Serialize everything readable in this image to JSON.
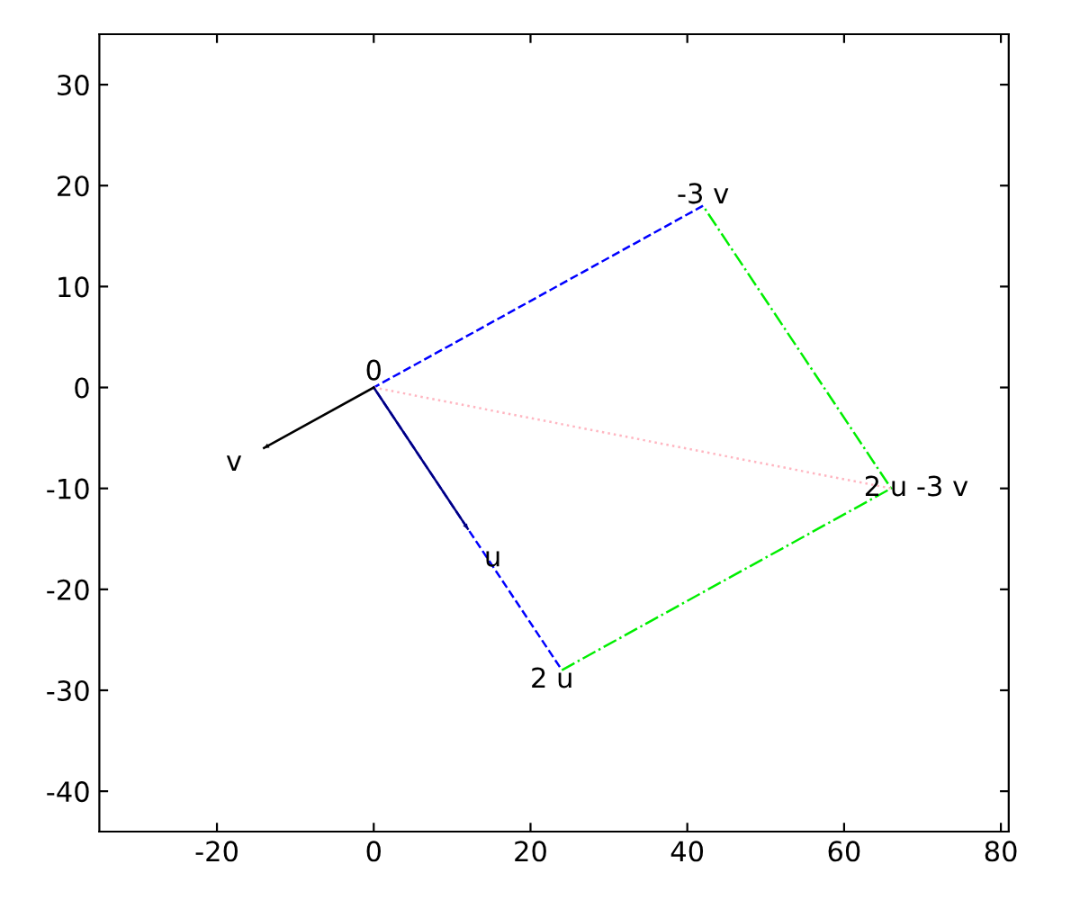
{
  "chart_data": {
    "type": "line",
    "series": [
      {
        "x": [
          42,
          0,
          24
        ],
        "values": [
          18,
          0,
          -28
        ],
        "color": "#0000ff",
        "line_style": "dashed"
      },
      {
        "x": [
          24,
          66,
          42
        ],
        "values": [
          -28,
          -10,
          18
        ],
        "color": "#00ee00",
        "line_style": "dashdot"
      },
      {
        "x": [
          0,
          66
        ],
        "values": [
          0,
          -10
        ],
        "color": "#ffb6c1",
        "line_style": "dotted"
      },
      {
        "x": [
          0,
          12
        ],
        "values": [
          0,
          -14
        ],
        "color": "#000080",
        "line_style": "solid"
      },
      {
        "x": [
          0,
          -14
        ],
        "values": [
          0,
          -6
        ],
        "color": "#000000",
        "line_style": "solid"
      }
    ],
    "annotations": [
      {
        "text": "0",
        "x": 0,
        "y": 0
      },
      {
        "text": "-3 v",
        "x": 42,
        "y": 18
      },
      {
        "text": "2 u -3 v",
        "x": 66,
        "y": -10
      },
      {
        "text": "2 u",
        "x": 24,
        "y": -28
      },
      {
        "text": "u",
        "x": 12,
        "y": -14
      },
      {
        "text": "v",
        "x": -14,
        "y": -6
      }
    ],
    "xlim": [
      -35,
      81
    ],
    "ylim": [
      -44,
      35
    ],
    "xticks": [
      -20,
      0,
      20,
      40,
      60,
      80
    ],
    "yticks": [
      -40,
      -30,
      -20,
      -10,
      0,
      10,
      20,
      30
    ],
    "grid": false,
    "legend": false
  }
}
